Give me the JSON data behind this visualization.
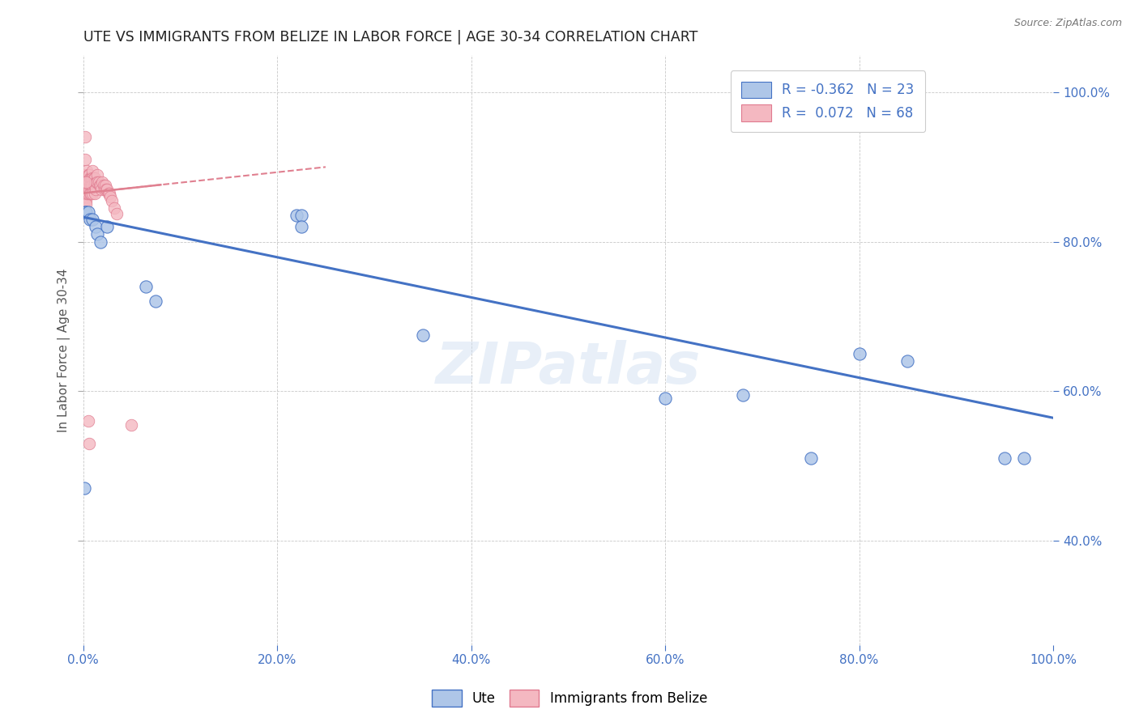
{
  "title": "UTE VS IMMIGRANTS FROM BELIZE IN LABOR FORCE | AGE 30-34 CORRELATION CHART",
  "source": "Source: ZipAtlas.com",
  "ylabel": "In Labor Force | Age 30-34",
  "ute_color": "#aec6e8",
  "ute_edge_color": "#4472c4",
  "belize_color": "#f4b8c1",
  "belize_edge_color": "#e07a8f",
  "ute_line_color": "#4472c4",
  "belize_line_color": "#e08090",
  "watermark": "ZIPatlas",
  "background_color": "#ffffff",
  "grid_color": "#c8c8c8",
  "right_tick_color": "#4472c4",
  "bottom_tick_color": "#4472c4",
  "xlim": [
    0.0,
    1.0
  ],
  "ylim": [
    0.26,
    1.05
  ],
  "yticks": [
    0.4,
    0.6,
    0.8,
    1.0
  ],
  "xticks": [
    0.0,
    0.2,
    0.4,
    0.6,
    0.8,
    1.0
  ],
  "ute_x": [
    0.001,
    0.002,
    0.003,
    0.005,
    0.007,
    0.01,
    0.013,
    0.015,
    0.018,
    0.065,
    0.075,
    0.22,
    0.225,
    0.225,
    0.35,
    0.6,
    0.68,
    0.75,
    0.8,
    0.85,
    0.95,
    0.97,
    0.025
  ],
  "ute_y": [
    0.47,
    0.84,
    0.84,
    0.84,
    0.83,
    0.83,
    0.82,
    0.81,
    0.8,
    0.74,
    0.72,
    0.835,
    0.835,
    0.82,
    0.675,
    0.59,
    0.595,
    0.51,
    0.65,
    0.64,
    0.51,
    0.51,
    0.82
  ],
  "belize_x": [
    0.001,
    0.001,
    0.001,
    0.001,
    0.002,
    0.002,
    0.002,
    0.002,
    0.002,
    0.003,
    0.003,
    0.003,
    0.003,
    0.003,
    0.004,
    0.004,
    0.004,
    0.004,
    0.005,
    0.005,
    0.005,
    0.005,
    0.006,
    0.006,
    0.006,
    0.007,
    0.007,
    0.007,
    0.008,
    0.008,
    0.008,
    0.009,
    0.009,
    0.01,
    0.01,
    0.01,
    0.01,
    0.011,
    0.011,
    0.012,
    0.012,
    0.012,
    0.013,
    0.013,
    0.014,
    0.015,
    0.015,
    0.016,
    0.017,
    0.018,
    0.019,
    0.02,
    0.021,
    0.022,
    0.023,
    0.024,
    0.025,
    0.026,
    0.027,
    0.028,
    0.03,
    0.032,
    0.035,
    0.002,
    0.003,
    0.005,
    0.006,
    0.05
  ],
  "belize_y": [
    0.87,
    0.86,
    0.855,
    0.845,
    0.91,
    0.89,
    0.88,
    0.87,
    0.86,
    0.87,
    0.865,
    0.86,
    0.855,
    0.85,
    0.895,
    0.88,
    0.875,
    0.865,
    0.89,
    0.88,
    0.875,
    0.865,
    0.89,
    0.88,
    0.87,
    0.885,
    0.875,
    0.865,
    0.885,
    0.875,
    0.865,
    0.885,
    0.875,
    0.895,
    0.885,
    0.875,
    0.865,
    0.885,
    0.875,
    0.885,
    0.875,
    0.865,
    0.88,
    0.87,
    0.88,
    0.89,
    0.88,
    0.88,
    0.875,
    0.875,
    0.87,
    0.88,
    0.875,
    0.87,
    0.875,
    0.87,
    0.87,
    0.865,
    0.865,
    0.86,
    0.855,
    0.845,
    0.838,
    0.94,
    0.88,
    0.56,
    0.53,
    0.555
  ],
  "ute_trend_x": [
    0.0,
    1.0
  ],
  "ute_trend_y": [
    0.833,
    0.564
  ],
  "belize_trend_x": [
    0.0,
    0.25
  ],
  "belize_trend_y": [
    0.865,
    0.9
  ]
}
